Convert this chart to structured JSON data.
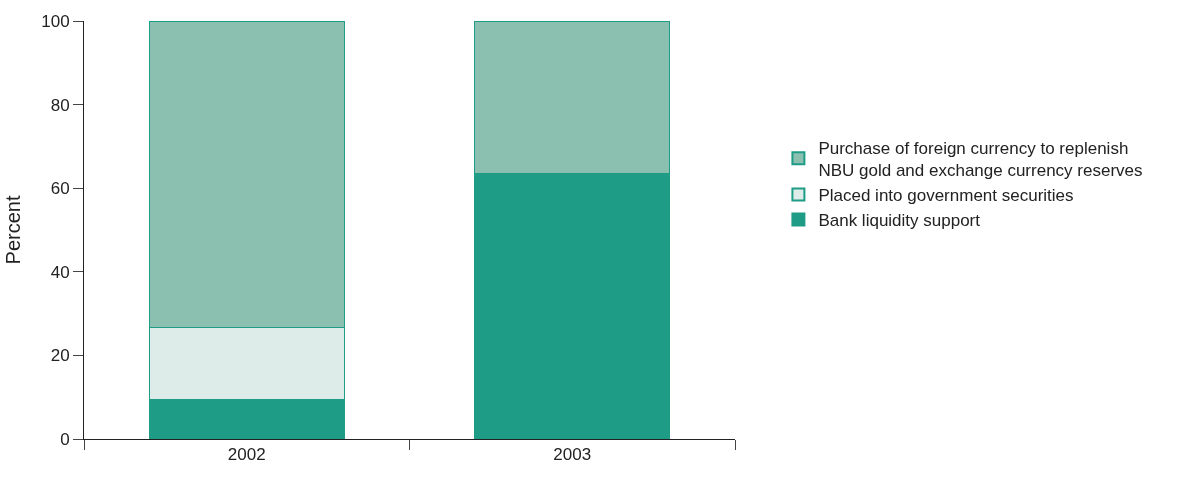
{
  "chart_data": {
    "type": "bar",
    "stacked": true,
    "ylabel": "Percent",
    "categories": [
      "2002",
      "2003"
    ],
    "series": [
      {
        "name": "Bank liquidity support",
        "color": "#1e9c86",
        "values": [
          9.4,
          63.4
        ]
      },
      {
        "name": "Placed into government securities",
        "color": "#ddece8",
        "values": [
          17.3,
          0
        ]
      },
      {
        "name": "Purchase of foreign currency to replenish\nNBU gold and exchange currency reserves",
        "color": "#8bbfb0",
        "values": [
          73.3,
          36.6
        ]
      }
    ],
    "ylim": [
      0,
      100
    ],
    "yticks": [
      0,
      20,
      40,
      60,
      80,
      100
    ],
    "legend": "right"
  }
}
